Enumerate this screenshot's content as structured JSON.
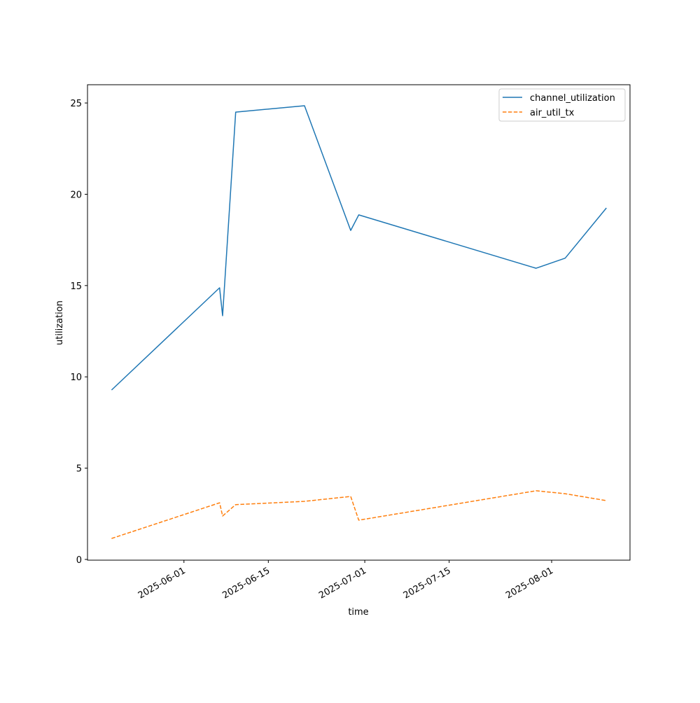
{
  "chart_data": {
    "type": "line",
    "title": "",
    "xlabel": "time",
    "ylabel": "utilization",
    "xlim": [
      "2025-05-16T00:00",
      "2025-08-14T00:00"
    ],
    "ylim": [
      -0.04,
      26.0
    ],
    "x_ticks": [
      {
        "date": "2025-06-01T00:00",
        "label": "2025-06-01"
      },
      {
        "date": "2025-06-15T00:00",
        "label": "2025-06-15"
      },
      {
        "date": "2025-07-01T00:00",
        "label": "2025-07-01"
      },
      {
        "date": "2025-07-15T00:00",
        "label": "2025-07-15"
      },
      {
        "date": "2025-08-01T00:00",
        "label": "2025-08-01"
      }
    ],
    "y_ticks": [
      0,
      5,
      10,
      15,
      20,
      25
    ],
    "legend_position": "top-right",
    "x": [
      "2025-05-20T00:00",
      "2025-06-06T22:00",
      "2025-06-07T10:00",
      "2025-06-09T14:00",
      "2025-06-21T00:00",
      "2025-06-28T16:00",
      "2025-06-30T00:00",
      "2025-07-29T10:00",
      "2025-08-03T06:00",
      "2025-08-10T02:00"
    ],
    "series": [
      {
        "name": "channel_utilization",
        "color": "#1f77b4",
        "style": "solid",
        "values": [
          9.28,
          14.88,
          13.35,
          24.5,
          24.85,
          18.02,
          18.87,
          15.95,
          16.5,
          19.25
        ]
      },
      {
        "name": "air_util_tx",
        "color": "#ff7f0e",
        "style": "dashed",
        "values": [
          1.15,
          3.1,
          2.38,
          3.0,
          3.18,
          3.45,
          2.15,
          3.76,
          3.6,
          3.22
        ]
      }
    ]
  }
}
